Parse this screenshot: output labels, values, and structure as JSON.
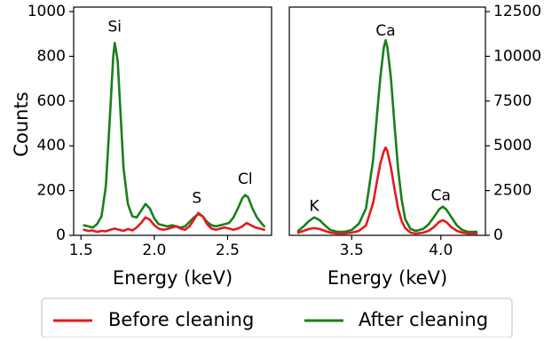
{
  "chart_data": [
    {
      "type": "line",
      "xlabel": "Energy (keV)",
      "ylabel": "Counts",
      "xlim": [
        1.45,
        2.8
      ],
      "ylim": [
        0,
        1020
      ],
      "xticks": [
        1.5,
        2.0,
        2.5
      ],
      "xtick_labels": [
        "1.5",
        "2.0",
        "2.5"
      ],
      "yticks": [
        0,
        200,
        400,
        600,
        800,
        1000
      ],
      "ytick_labels": [
        "0",
        "200",
        "400",
        "600",
        "800",
        "1000"
      ],
      "y_axis_side": "left",
      "annotations": [
        {
          "text": "Si",
          "x": 1.73,
          "y": 930
        },
        {
          "text": "S",
          "x": 2.29,
          "y": 165
        },
        {
          "text": "Cl",
          "x": 2.62,
          "y": 250
        }
      ],
      "series": [
        {
          "name": "Before cleaning",
          "color": "#e41a1c",
          "x": [
            1.52,
            1.55,
            1.58,
            1.61,
            1.64,
            1.67,
            1.7,
            1.73,
            1.76,
            1.79,
            1.82,
            1.85,
            1.88,
            1.91,
            1.94,
            1.97,
            2.0,
            2.03,
            2.06,
            2.09,
            2.12,
            2.15,
            2.18,
            2.21,
            2.24,
            2.27,
            2.3,
            2.33,
            2.36,
            2.39,
            2.42,
            2.45,
            2.48,
            2.51,
            2.54,
            2.57,
            2.6,
            2.63,
            2.66,
            2.69,
            2.72,
            2.75
          ],
          "y": [
            25,
            20,
            22,
            15,
            20,
            18,
            25,
            30,
            25,
            20,
            28,
            22,
            35,
            55,
            80,
            70,
            45,
            30,
            25,
            28,
            35,
            40,
            30,
            25,
            40,
            70,
            100,
            85,
            50,
            30,
            25,
            30,
            35,
            30,
            25,
            30,
            40,
            55,
            45,
            35,
            30,
            25
          ]
        },
        {
          "name": "After cleaning",
          "color": "#1a7f1a",
          "x": [
            1.52,
            1.55,
            1.58,
            1.61,
            1.64,
            1.67,
            1.7,
            1.72,
            1.73,
            1.75,
            1.77,
            1.79,
            1.82,
            1.85,
            1.88,
            1.91,
            1.94,
            1.97,
            2.0,
            2.03,
            2.06,
            2.09,
            2.12,
            2.15,
            2.18,
            2.21,
            2.24,
            2.27,
            2.3,
            2.33,
            2.36,
            2.39,
            2.42,
            2.45,
            2.48,
            2.51,
            2.54,
            2.57,
            2.6,
            2.62,
            2.64,
            2.67,
            2.7,
            2.73,
            2.75
          ],
          "y": [
            45,
            40,
            35,
            50,
            85,
            220,
            560,
            800,
            860,
            780,
            540,
            300,
            140,
            85,
            80,
            110,
            140,
            120,
            75,
            50,
            45,
            40,
            45,
            40,
            35,
            40,
            60,
            80,
            95,
            85,
            60,
            45,
            40,
            45,
            50,
            55,
            80,
            120,
            165,
            180,
            170,
            120,
            80,
            55,
            40
          ]
        }
      ]
    },
    {
      "type": "line",
      "xlabel": "Energy (keV)",
      "ylabel": "",
      "xlim": [
        3.15,
        4.25
      ],
      "ylim": [
        0,
        12750
      ],
      "xticks": [
        3.5,
        4.0
      ],
      "xtick_labels": [
        "3.5",
        "4.0"
      ],
      "yticks": [
        0,
        2500,
        5000,
        7500,
        10000,
        12500
      ],
      "ytick_labels": [
        "0",
        "2500",
        "5000",
        "7500",
        "10000",
        "12500"
      ],
      "y_axis_side": "right",
      "annotations": [
        {
          "text": "K",
          "x": 3.29,
          "y": 1600
        },
        {
          "text": "Ca",
          "x": 3.69,
          "y": 11400
        },
        {
          "text": "Ca",
          "x": 4.0,
          "y": 2200
        }
      ],
      "series": [
        {
          "name": "Before cleaning",
          "color": "#e41a1c",
          "x": [
            3.2,
            3.23,
            3.26,
            3.29,
            3.32,
            3.35,
            3.38,
            3.42,
            3.46,
            3.5,
            3.54,
            3.58,
            3.62,
            3.64,
            3.66,
            3.68,
            3.69,
            3.7,
            3.72,
            3.74,
            3.76,
            3.78,
            3.8,
            3.83,
            3.86,
            3.9,
            3.93,
            3.96,
            3.99,
            4.01,
            4.03,
            4.06,
            4.09,
            4.12,
            4.15,
            4.2
          ],
          "y": [
            150,
            250,
            350,
            400,
            350,
            250,
            150,
            100,
            100,
            150,
            250,
            550,
            1800,
            2900,
            4000,
            4700,
            4900,
            4700,
            3800,
            2600,
            1500,
            800,
            400,
            150,
            100,
            150,
            250,
            450,
            750,
            850,
            750,
            450,
            250,
            150,
            100,
            100
          ]
        },
        {
          "name": "After cleaning",
          "color": "#1a7f1a",
          "x": [
            3.2,
            3.23,
            3.26,
            3.29,
            3.32,
            3.35,
            3.38,
            3.42,
            3.46,
            3.5,
            3.54,
            3.58,
            3.62,
            3.64,
            3.66,
            3.68,
            3.69,
            3.7,
            3.72,
            3.74,
            3.76,
            3.78,
            3.8,
            3.83,
            3.86,
            3.9,
            3.93,
            3.96,
            3.99,
            4.01,
            4.03,
            4.06,
            4.09,
            4.12,
            4.15,
            4.2
          ],
          "y": [
            250,
            500,
            800,
            1000,
            850,
            550,
            300,
            200,
            200,
            300,
            650,
            1500,
            4200,
            6500,
            8800,
            10500,
            10900,
            10500,
            8800,
            6200,
            3700,
            2000,
            900,
            350,
            250,
            350,
            600,
            1000,
            1450,
            1600,
            1450,
            1000,
            550,
            300,
            200,
            200
          ]
        }
      ]
    }
  ],
  "legend": {
    "placement": "bottom",
    "items": [
      {
        "label": "Before cleaning",
        "color": "#e41a1c"
      },
      {
        "label": "After cleaning",
        "color": "#1a7f1a"
      }
    ]
  }
}
